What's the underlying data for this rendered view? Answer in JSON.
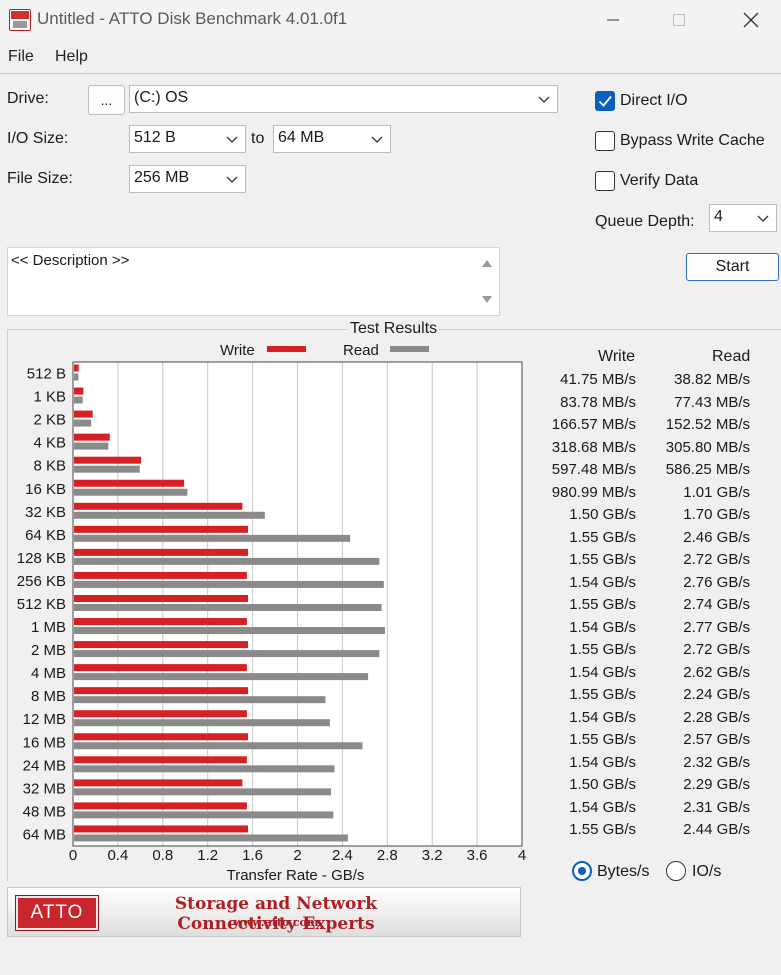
{
  "window": {
    "title": "Untitled - ATTO Disk Benchmark 4.01.0f1"
  },
  "menu": {
    "file": "File",
    "help": "Help"
  },
  "form": {
    "drive_label": "Drive:",
    "browse_label": "...",
    "drive_value": "(C:) OS",
    "io_size_label": "I/O Size:",
    "io_from": "512 B",
    "to_label": "to",
    "io_to": "64 MB",
    "file_size_label": "File Size:",
    "file_size_value": "256 MB",
    "direct_io_label": "Direct I/O",
    "direct_io_checked": true,
    "bypass_label": "Bypass Write Cache",
    "bypass_checked": false,
    "verify_label": "Verify Data",
    "verify_checked": false,
    "queue_depth_label": "Queue Depth:",
    "queue_depth_value": "4",
    "start_label": "Start",
    "description_text": "<< Description >>"
  },
  "results": {
    "title": "Test Results",
    "write_header": "Write",
    "read_header": "Read",
    "rows": [
      {
        "size": "512 B",
        "write": "41.75 MB/s",
        "read": "38.82 MB/s"
      },
      {
        "size": "1 KB",
        "write": "83.78 MB/s",
        "read": "77.43 MB/s"
      },
      {
        "size": "2 KB",
        "write": "166.57 MB/s",
        "read": "152.52 MB/s"
      },
      {
        "size": "4 KB",
        "write": "318.68 MB/s",
        "read": "305.80 MB/s"
      },
      {
        "size": "8 KB",
        "write": "597.48 MB/s",
        "read": "586.25 MB/s"
      },
      {
        "size": "16 KB",
        "write": "980.99 MB/s",
        "read": "1.01 GB/s"
      },
      {
        "size": "32 KB",
        "write": "1.50 GB/s",
        "read": "1.70 GB/s"
      },
      {
        "size": "64 KB",
        "write": "1.55 GB/s",
        "read": "2.46 GB/s"
      },
      {
        "size": "128 KB",
        "write": "1.55 GB/s",
        "read": "2.72 GB/s"
      },
      {
        "size": "256 KB",
        "write": "1.54 GB/s",
        "read": "2.76 GB/s"
      },
      {
        "size": "512 KB",
        "write": "1.55 GB/s",
        "read": "2.74 GB/s"
      },
      {
        "size": "1 MB",
        "write": "1.54 GB/s",
        "read": "2.77 GB/s"
      },
      {
        "size": "2 MB",
        "write": "1.55 GB/s",
        "read": "2.72 GB/s"
      },
      {
        "size": "4 MB",
        "write": "1.54 GB/s",
        "read": "2.62 GB/s"
      },
      {
        "size": "8 MB",
        "write": "1.55 GB/s",
        "read": "2.24 GB/s"
      },
      {
        "size": "12 MB",
        "write": "1.54 GB/s",
        "read": "2.28 GB/s"
      },
      {
        "size": "16 MB",
        "write": "1.55 GB/s",
        "read": "2.57 GB/s"
      },
      {
        "size": "24 MB",
        "write": "1.54 GB/s",
        "read": "2.32 GB/s"
      },
      {
        "size": "32 MB",
        "write": "1.50 GB/s",
        "read": "2.29 GB/s"
      },
      {
        "size": "48 MB",
        "write": "1.54 GB/s",
        "read": "2.31 GB/s"
      },
      {
        "size": "64 MB",
        "write": "1.55 GB/s",
        "read": "2.44 GB/s"
      }
    ],
    "units": {
      "bytes_label": "Bytes/s",
      "io_label": "IO/s",
      "selected": "bytes"
    }
  },
  "banner": {
    "logo_text": "ATTO",
    "tagline": "Storage and Network Connectivity Experts",
    "url": "www.atto.com"
  },
  "colors": {
    "write": "#d62023",
    "read": "#8a8a8a",
    "accent": "#0a5fbf"
  },
  "chart_data": {
    "type": "bar",
    "orientation": "horizontal",
    "legend": [
      "Write",
      "Read"
    ],
    "xlabel": "Transfer Rate - GB/s",
    "xlim": [
      0,
      4
    ],
    "xticks": [
      "0",
      "0.4",
      "0.8",
      "1.2",
      "1.6",
      "2",
      "2.4",
      "2.8",
      "3.2",
      "3.6",
      "4"
    ],
    "grid": true,
    "categories": [
      "512 B",
      "1 KB",
      "2 KB",
      "4 KB",
      "8 KB",
      "16 KB",
      "32 KB",
      "64 KB",
      "128 KB",
      "256 KB",
      "512 KB",
      "1 MB",
      "2 MB",
      "4 MB",
      "8 MB",
      "12 MB",
      "16 MB",
      "24 MB",
      "32 MB",
      "48 MB",
      "64 MB"
    ],
    "series": [
      {
        "name": "Write",
        "values": [
          0.04175,
          0.08378,
          0.16657,
          0.31868,
          0.59748,
          0.98099,
          1.5,
          1.55,
          1.55,
          1.54,
          1.55,
          1.54,
          1.55,
          1.54,
          1.55,
          1.54,
          1.55,
          1.54,
          1.5,
          1.54,
          1.55
        ]
      },
      {
        "name": "Read",
        "values": [
          0.03882,
          0.07743,
          0.15252,
          0.3058,
          0.58625,
          1.01,
          1.7,
          2.46,
          2.72,
          2.76,
          2.74,
          2.77,
          2.72,
          2.62,
          2.24,
          2.28,
          2.57,
          2.32,
          2.29,
          2.31,
          2.44
        ]
      }
    ]
  }
}
